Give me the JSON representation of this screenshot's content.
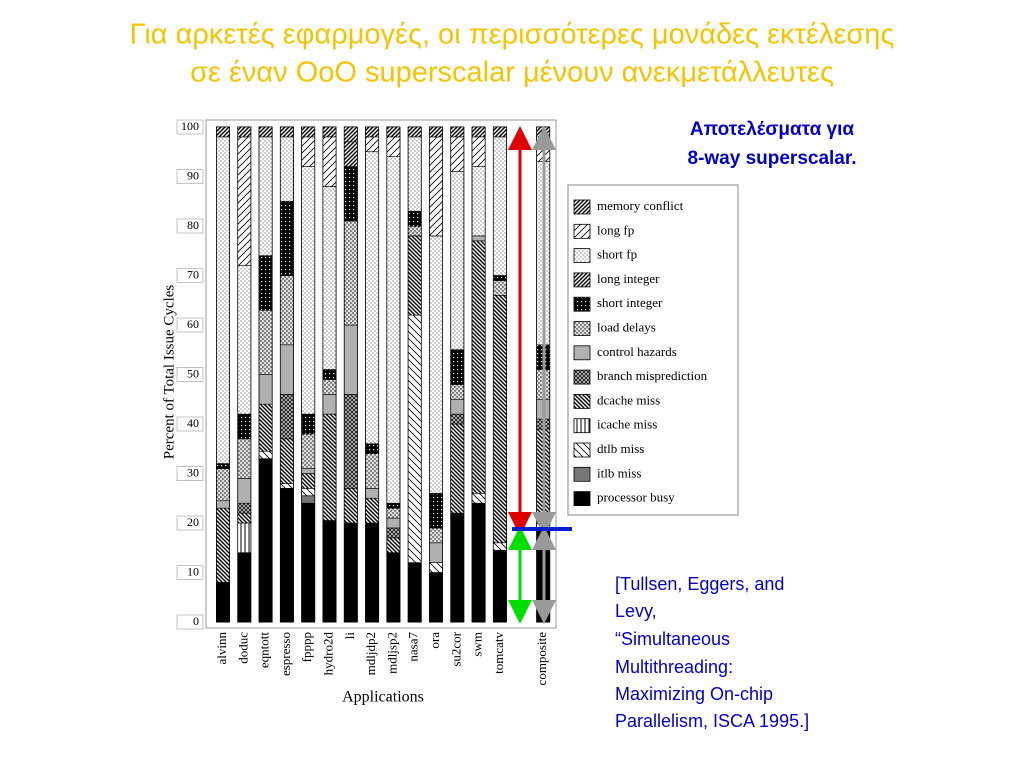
{
  "chart_data": {
    "type": "bar",
    "stacked": true,
    "title": [
      "Για αρκετές εφαρμογές, οι περισσότερες μονάδες εκτέλεσης",
      "σε έναν OoO superscalar μένουν ανεκμετάλλευτες"
    ],
    "annotation": [
      "Αποτελέσματα για",
      "8-way superscalar."
    ],
    "source": [
      "[Tullsen, Eggers, and",
      "Levy,",
      "“Simultaneous",
      "Multithreading:",
      "Maximizing On-chip",
      "Parallelism, ISCA 1995.]"
    ],
    "x_label": "Applications",
    "y_label": "Percent of Total Issue Cycles",
    "categories": [
      "alvinn",
      "doduc",
      "eqntott",
      "espresso",
      "fpppp",
      "hydro2d",
      "li",
      "mdljdp2",
      "mdljsp2",
      "nasa7",
      "ora",
      "su2cor",
      "swm",
      "tomcatv",
      "composite"
    ],
    "series": [
      {
        "name": "memory conflict",
        "color": "#000000",
        "pattern": "diag-dense",
        "values": [
          2,
          2,
          2,
          2,
          2,
          2,
          3,
          2,
          2,
          2,
          2,
          2,
          2,
          2,
          2
        ]
      },
      {
        "name": "long fp",
        "color": "#000000",
        "pattern": "diag",
        "values": [
          0,
          26,
          0,
          0,
          6,
          10,
          0,
          3,
          4,
          0,
          20,
          7,
          6,
          0,
          5
        ]
      },
      {
        "name": "short fp",
        "color": "#000000",
        "pattern": "dots",
        "values": [
          66,
          30,
          24,
          13,
          50,
          37,
          0,
          59,
          70,
          15,
          52,
          36,
          14,
          28,
          37
        ]
      },
      {
        "name": "long integer",
        "color": "#000000",
        "pattern": "diag-dense",
        "values": [
          0,
          0,
          0,
          0,
          0,
          0,
          5,
          0,
          0,
          0,
          0,
          0,
          0,
          0,
          0
        ]
      },
      {
        "name": "short integer",
        "color": "#000000",
        "pattern": "grid-dark",
        "values": [
          1,
          5,
          11,
          15,
          4,
          2,
          11,
          2,
          1,
          3,
          7,
          7,
          0,
          1,
          5
        ]
      },
      {
        "name": "load delays",
        "color": "#000000",
        "pattern": "dots-dense",
        "values": [
          6.5,
          8,
          13,
          14,
          7,
          3,
          21,
          7,
          2,
          2,
          3,
          3,
          0,
          3,
          6
        ]
      },
      {
        "name": "control hazards",
        "color": "#b0b0b0",
        "pattern": "solid",
        "values": [
          1.5,
          5,
          6,
          10,
          1,
          4,
          14,
          2,
          2,
          0,
          4,
          3,
          1,
          0,
          4
        ]
      },
      {
        "name": "branch misprediction",
        "color": "#000000",
        "pattern": "cross",
        "values": [
          0,
          2,
          0,
          9,
          0,
          0,
          19,
          0,
          2,
          0,
          0,
          2,
          0,
          0,
          2
        ]
      },
      {
        "name": "dcache miss",
        "color": "#000000",
        "pattern": "backdiag-dense",
        "values": [
          15,
          2,
          9.5,
          9,
          3,
          21.5,
          7,
          5,
          3,
          16,
          0,
          18,
          51,
          50,
          18
        ]
      },
      {
        "name": "icache miss",
        "color": "#000000",
        "pattern": "vertical",
        "values": [
          0,
          6,
          0,
          0,
          0,
          0,
          0,
          0,
          0,
          0,
          0,
          0,
          0,
          0,
          0
        ]
      },
      {
        "name": "dtlb miss",
        "color": "#000000",
        "pattern": "backdiag",
        "values": [
          0,
          0,
          1.5,
          1,
          1.5,
          0,
          0,
          0,
          0,
          50,
          2,
          0,
          2,
          1.5,
          2.5
        ]
      },
      {
        "name": "itlb miss",
        "color": "#777777",
        "pattern": "solid",
        "values": [
          0,
          0,
          0,
          0,
          1.5,
          0,
          0,
          0,
          0,
          0,
          0,
          0,
          0,
          0,
          0
        ]
      },
      {
        "name": "processor busy",
        "color": "#000000",
        "pattern": "solid",
        "values": [
          8,
          14,
          33,
          27,
          24,
          20.5,
          20,
          20,
          14,
          12,
          10,
          22,
          24,
          14.5,
          18.5
        ]
      }
    ],
    "ylim": [
      0,
      100
    ],
    "yticks": [
      0,
      10,
      20,
      30,
      40,
      50,
      60,
      70,
      80,
      90,
      100
    ]
  }
}
